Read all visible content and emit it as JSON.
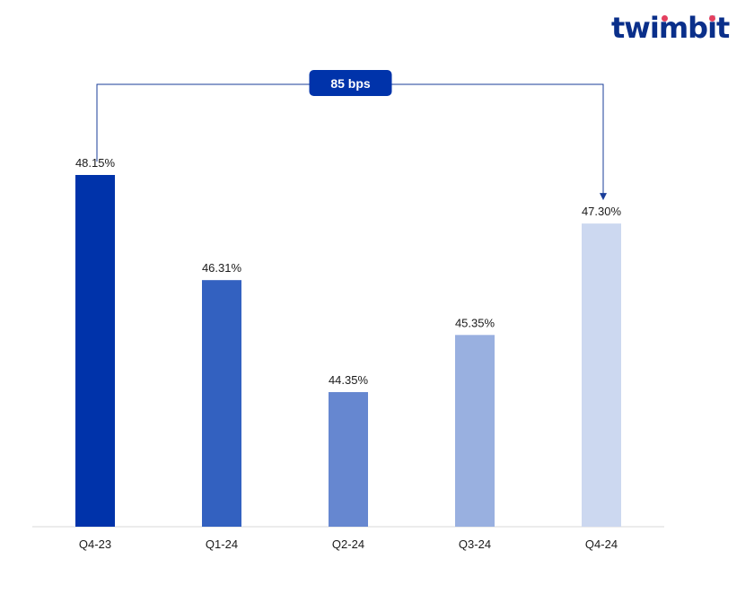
{
  "brand": {
    "name": "twimbit",
    "accent": "#e4405f",
    "color": "#0a2f8a"
  },
  "chart_data": {
    "type": "bar",
    "categories": [
      "Q4-23",
      "Q1-24",
      "Q2-24",
      "Q3-24",
      "Q4-24"
    ],
    "values": [
      48.15,
      46.31,
      44.35,
      45.35,
      47.3
    ],
    "value_labels": [
      "48.15%",
      "46.31%",
      "44.35%",
      "45.35%",
      "47.30%"
    ],
    "colors": [
      "#0033aa",
      "#3361c0",
      "#6687d0",
      "#99b0e0",
      "#ccd8f0"
    ],
    "annotation": {
      "label": "85 bps",
      "from": "Q4-23",
      "to": "Q4-24"
    },
    "title": "",
    "xlabel": "",
    "ylabel": "",
    "grid": false
  }
}
